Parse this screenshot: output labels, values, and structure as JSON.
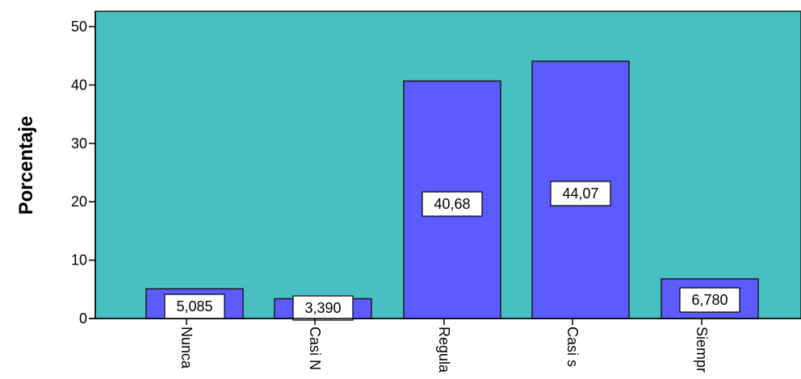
{
  "chart_data": {
    "type": "bar",
    "title": "",
    "xlabel": "",
    "ylabel": "Porcentaje",
    "ylim": [
      0,
      50
    ],
    "yticks": [
      0,
      10,
      20,
      30,
      40,
      50
    ],
    "categories": [
      "Nunca",
      "Casi N",
      "Regula",
      "Casi s",
      "Siempr"
    ],
    "values": [
      5.085,
      3.39,
      40.68,
      44.07,
      6.78
    ],
    "data_labels": [
      "5,085",
      "3,390",
      "40,68",
      "44,07",
      "6,780"
    ],
    "grid": false,
    "colors": {
      "plot_background": "#48BFC2",
      "bar_fill": "#5B5BFF",
      "bar_stroke": "#1a1a1a",
      "label_box_fill": "#FFFFFF"
    }
  }
}
